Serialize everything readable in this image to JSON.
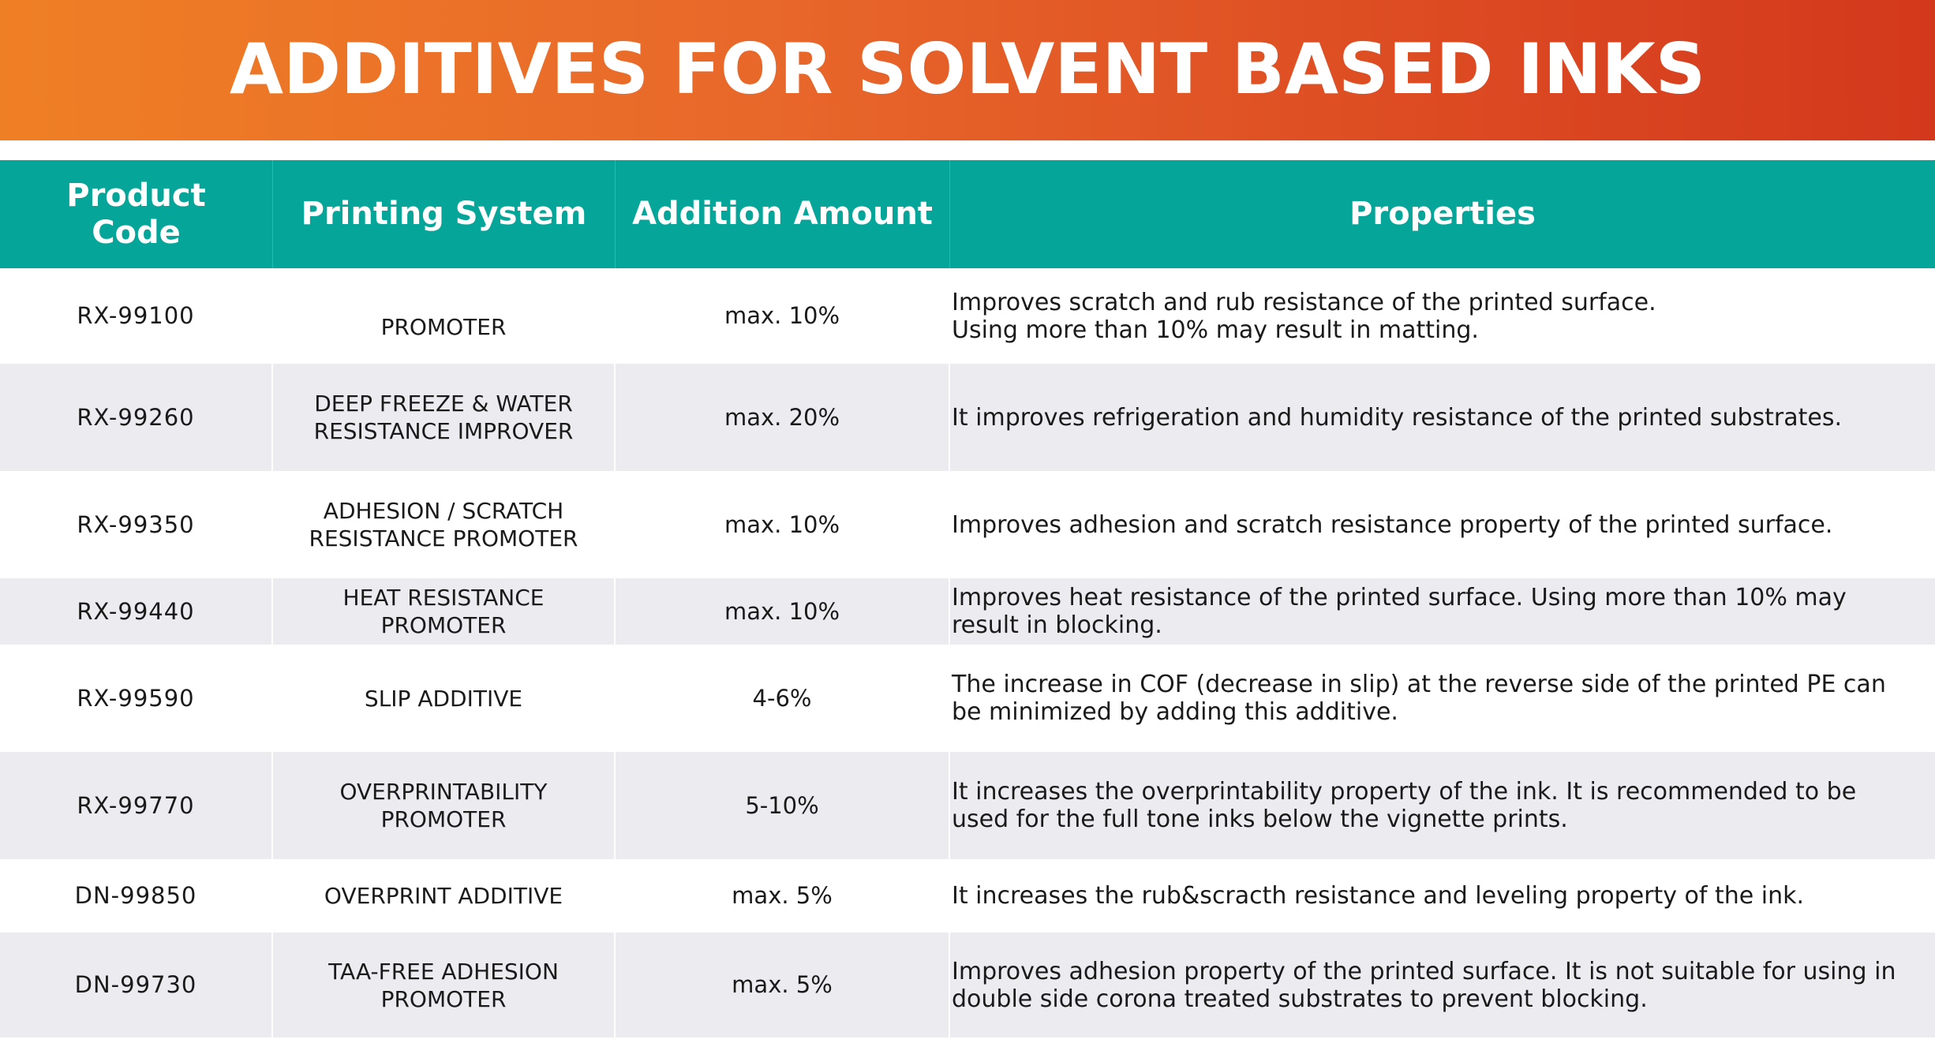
{
  "title": "ADDITIVES FOR SOLVENT BASED INKS",
  "colors": {
    "banner_start": "#ef7f25",
    "banner_end": "#d3381c",
    "header_bg": "#05a699",
    "alt_row": "#ececf0"
  },
  "table": {
    "headers": [
      "Product Code",
      "Printing System",
      "Addition Amount",
      "Properties"
    ],
    "rows": [
      {
        "code": "RX-99100",
        "system": "PROMOTER",
        "amount": "max. 10%",
        "properties": "Improves scratch and rub resistance of the printed surface.\nUsing more than 10% may result in matting."
      },
      {
        "code": "RX-99260",
        "system": "DEEP FREEZE &  WATER RESISTANCE IMPROVER",
        "amount": "max. 20%",
        "properties": "It improves refrigeration and humidity resistance of the printed substrates."
      },
      {
        "code": "RX-99350",
        "system": "ADHESION / SCRATCH RESISTANCE PROMOTER",
        "amount": "max. 10%",
        "properties": "Improves adhesion and scratch resistance property of the printed surface."
      },
      {
        "code": "RX-99440",
        "system": "HEAT RESISTANCE PROMOTER",
        "amount": "max. 10%",
        "properties": "Improves heat resistance of the printed surface. Using more than 10% may result in blocking."
      },
      {
        "code": "RX-99590",
        "system": "SLIP ADDITIVE",
        "amount": "4-6%",
        "properties": "The increase in COF (decrease in slip) at the reverse side of the printed PE can be minimized by adding this additive."
      },
      {
        "code": "RX-99770",
        "system": "OVERPRINTABILITY PROMOTER",
        "amount": "5-10%",
        "properties": "It increases the overprintability property of the ink. It is recommended to be used for the full tone inks below the vignette prints."
      },
      {
        "code": "DN-99850",
        "system": "OVERPRINT ADDITIVE",
        "amount": "max. 5%",
        "properties": "It increases the rub&scracth resistance and leveling property of the ink."
      },
      {
        "code": "DN-99730",
        "system": "TAA-FREE ADHESION PROMOTER",
        "amount": "max. 5%",
        "properties": "Improves adhesion property of the printed surface. It is not suitable for using in double side corona treated substrates to prevent blocking."
      }
    ]
  }
}
